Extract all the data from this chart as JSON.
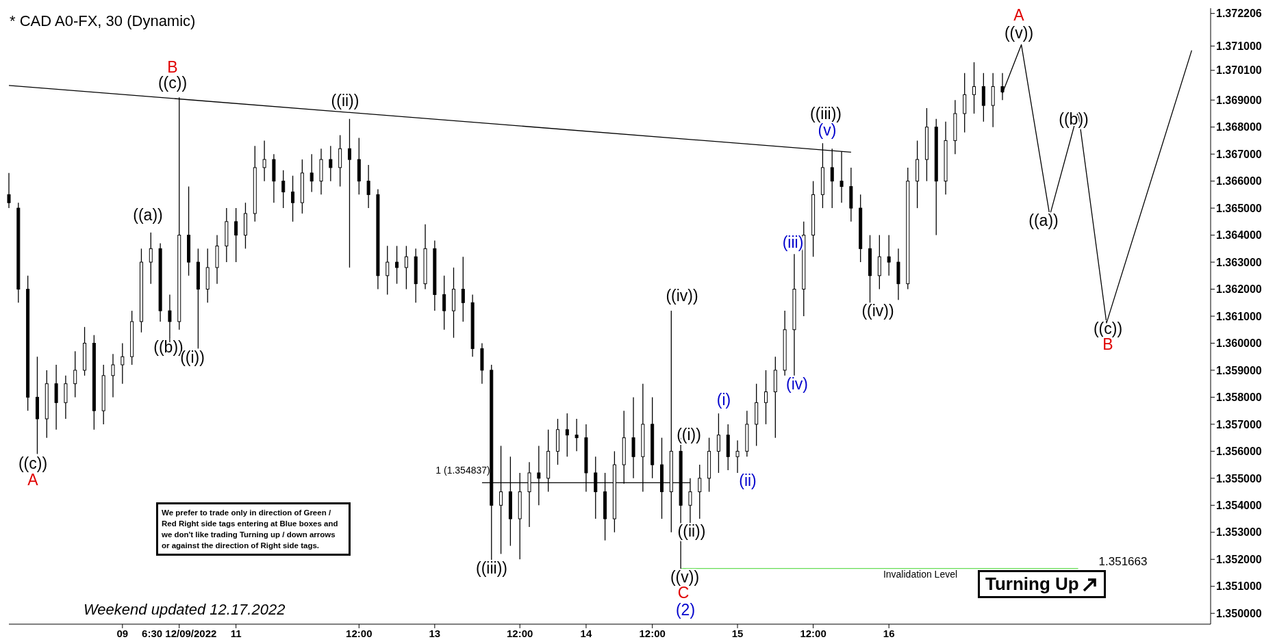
{
  "chart_data": {
    "type": "candlestick",
    "title": "* CAD A0-FX, 30 (Dynamic)",
    "color": "#000000",
    "categories": [
      null,
      null,
      null,
      null,
      null,
      null,
      null,
      null,
      null,
      null,
      null,
      null,
      "09",
      null,
      null,
      null,
      null,
      null,
      "6:30 12/09/2022",
      null,
      null,
      null,
      null,
      null,
      "11",
      null,
      null,
      null,
      null,
      null,
      null,
      null,
      null,
      null,
      null,
      null,
      null,
      "12:00",
      null,
      null,
      null,
      null,
      null,
      null,
      null,
      "13",
      null,
      null,
      null,
      null,
      null,
      null,
      null,
      null,
      "12:00",
      null,
      null,
      null,
      null,
      null,
      null,
      "14",
      null,
      null,
      null,
      null,
      null,
      null,
      "12:00",
      null,
      null,
      null,
      null,
      null,
      null,
      null,
      null,
      "15",
      null,
      null,
      null,
      null,
      null,
      null,
      null,
      "12:00",
      null,
      null,
      null,
      null,
      null,
      null,
      null,
      "16",
      null,
      null,
      null,
      null,
      null,
      null,
      null,
      null,
      null,
      null,
      null,
      null,
      null,
      null,
      null,
      null,
      null,
      null,
      null,
      null,
      null,
      null,
      null,
      null,
      null,
      null,
      null,
      null,
      null,
      null,
      null,
      null,
      null,
      null
    ],
    "ohlc": [
      [
        1.3655,
        1.3663,
        1.365,
        1.3652
      ],
      [
        1.365,
        1.3652,
        1.3615,
        1.362
      ],
      [
        1.362,
        1.3625,
        1.3575,
        1.358
      ],
      [
        1.358,
        1.3595,
        1.3559,
        1.3572
      ],
      [
        1.3572,
        1.359,
        1.3565,
        1.3585
      ],
      [
        1.3585,
        1.3592,
        1.3568,
        1.3578
      ],
      [
        1.3578,
        1.3588,
        1.3572,
        1.3585
      ],
      [
        1.3585,
        1.3597,
        1.358,
        1.359
      ],
      [
        1.359,
        1.3606,
        1.3588,
        1.36
      ],
      [
        1.36,
        1.3603,
        1.3568,
        1.3575
      ],
      [
        1.3575,
        1.3592,
        1.357,
        1.3588
      ],
      [
        1.3588,
        1.3596,
        1.358,
        1.3592
      ],
      [
        1.3592,
        1.36,
        1.3585,
        1.3595
      ],
      [
        1.3595,
        1.3612,
        1.3592,
        1.3608
      ],
      [
        1.3608,
        1.3635,
        1.3604,
        1.363
      ],
      [
        1.363,
        1.3641,
        1.3622,
        1.3635
      ],
      [
        1.3635,
        1.3637,
        1.3608,
        1.3612
      ],
      [
        1.3612,
        1.3618,
        1.36,
        1.3608
      ],
      [
        1.3608,
        1.3691,
        1.3605,
        1.364
      ],
      [
        1.364,
        1.3658,
        1.3625,
        1.363
      ],
      [
        1.363,
        1.3635,
        1.3598,
        1.362
      ],
      [
        1.362,
        1.3635,
        1.3615,
        1.3628
      ],
      [
        1.3628,
        1.364,
        1.3622,
        1.3636
      ],
      [
        1.3636,
        1.365,
        1.363,
        1.3645
      ],
      [
        1.3645,
        1.365,
        1.363,
        1.364
      ],
      [
        1.364,
        1.3652,
        1.3635,
        1.3648
      ],
      [
        1.3648,
        1.3673,
        1.3645,
        1.3665
      ],
      [
        1.3665,
        1.3675,
        1.366,
        1.3668
      ],
      [
        1.3668,
        1.367,
        1.3652,
        1.366
      ],
      [
        1.366,
        1.3664,
        1.365,
        1.3656
      ],
      [
        1.3656,
        1.3662,
        1.3645,
        1.3652
      ],
      [
        1.3652,
        1.3668,
        1.3648,
        1.3663
      ],
      [
        1.3663,
        1.367,
        1.3656,
        1.366
      ],
      [
        1.366,
        1.3672,
        1.3655,
        1.3668
      ],
      [
        1.3668,
        1.3673,
        1.366,
        1.3665
      ],
      [
        1.3665,
        1.3677,
        1.3658,
        1.3672
      ],
      [
        1.3672,
        1.3683,
        1.3628,
        1.3668
      ],
      [
        1.3668,
        1.3676,
        1.3655,
        1.366
      ],
      [
        1.366,
        1.3666,
        1.365,
        1.3655
      ],
      [
        1.3655,
        1.3657,
        1.362,
        1.3625
      ],
      [
        1.3625,
        1.3636,
        1.3618,
        1.363
      ],
      [
        1.363,
        1.3636,
        1.3622,
        1.3628
      ],
      [
        1.3628,
        1.3636,
        1.362,
        1.3632
      ],
      [
        1.3632,
        1.3635,
        1.3615,
        1.3622
      ],
      [
        1.3622,
        1.3644,
        1.362,
        1.3635
      ],
      [
        1.3635,
        1.3638,
        1.3612,
        1.3618
      ],
      [
        1.3618,
        1.3625,
        1.3605,
        1.3612
      ],
      [
        1.3612,
        1.3628,
        1.3602,
        1.362
      ],
      [
        1.362,
        1.3632,
        1.3608,
        1.3615
      ],
      [
        1.3615,
        1.3618,
        1.3595,
        1.3598
      ],
      [
        1.3598,
        1.36,
        1.3585,
        1.359
      ],
      [
        1.359,
        1.3592,
        1.3519,
        1.354
      ],
      [
        1.354,
        1.3562,
        1.3522,
        1.3545
      ],
      [
        1.3545,
        1.3558,
        1.3525,
        1.3535
      ],
      [
        1.3535,
        1.3552,
        1.352,
        1.3545
      ],
      [
        1.3545,
        1.3556,
        1.3532,
        1.3552
      ],
      [
        1.3552,
        1.3562,
        1.354,
        1.355
      ],
      [
        1.355,
        1.3568,
        1.3545,
        1.356
      ],
      [
        1.356,
        1.3572,
        1.3555,
        1.3568
      ],
      [
        1.3568,
        1.3574,
        1.3558,
        1.3566
      ],
      [
        1.3566,
        1.3572,
        1.356,
        1.3565
      ],
      [
        1.3565,
        1.357,
        1.3545,
        1.3552
      ],
      [
        1.3552,
        1.3558,
        1.3535,
        1.3545
      ],
      [
        1.3545,
        1.3552,
        1.3527,
        1.3535
      ],
      [
        1.3535,
        1.356,
        1.353,
        1.3555
      ],
      [
        1.3555,
        1.3575,
        1.3548,
        1.3565
      ],
      [
        1.3565,
        1.358,
        1.355,
        1.3558
      ],
      [
        1.3558,
        1.3585,
        1.3545,
        1.357
      ],
      [
        1.357,
        1.358,
        1.355,
        1.3555
      ],
      [
        1.3555,
        1.3565,
        1.3535,
        1.3545
      ],
      [
        1.3545,
        1.3612,
        1.353,
        1.356
      ],
      [
        1.356,
        1.3565,
        1.3516,
        1.354
      ],
      [
        1.354,
        1.355,
        1.3532,
        1.3545
      ],
      [
        1.3545,
        1.3555,
        1.3535,
        1.355
      ],
      [
        1.355,
        1.3565,
        1.3545,
        1.356
      ],
      [
        1.356,
        1.3574,
        1.3552,
        1.3566
      ],
      [
        1.3566,
        1.357,
        1.3553,
        1.3558
      ],
      [
        1.3558,
        1.3564,
        1.3552,
        1.356
      ],
      [
        1.356,
        1.3575,
        1.3558,
        1.357
      ],
      [
        1.357,
        1.3585,
        1.3562,
        1.3578
      ],
      [
        1.3578,
        1.359,
        1.357,
        1.3582
      ],
      [
        1.3582,
        1.3595,
        1.3565,
        1.359
      ],
      [
        1.359,
        1.3612,
        1.3588,
        1.3605
      ],
      [
        1.3605,
        1.3633,
        1.3588,
        1.362
      ],
      [
        1.362,
        1.3645,
        1.361,
        1.364
      ],
      [
        1.364,
        1.366,
        1.3632,
        1.3655
      ],
      [
        1.3655,
        1.3674,
        1.365,
        1.3665
      ],
      [
        1.3665,
        1.3672,
        1.365,
        1.366
      ],
      [
        1.366,
        1.3671,
        1.3652,
        1.3658
      ],
      [
        1.3658,
        1.3665,
        1.3645,
        1.365
      ],
      [
        1.365,
        1.3655,
        1.363,
        1.3635
      ],
      [
        1.3635,
        1.364,
        1.3614,
        1.3625
      ],
      [
        1.3625,
        1.364,
        1.362,
        1.3632
      ],
      [
        1.3632,
        1.364,
        1.3625,
        1.363
      ],
      [
        1.363,
        1.3635,
        1.3616,
        1.3622
      ],
      [
        1.3622,
        1.3665,
        1.362,
        1.366
      ],
      [
        1.366,
        1.3675,
        1.365,
        1.3668
      ],
      [
        1.3668,
        1.3687,
        1.366,
        1.368
      ],
      [
        1.368,
        1.3683,
        1.364,
        1.366
      ],
      [
        1.366,
        1.3682,
        1.3655,
        1.3675
      ],
      [
        1.3675,
        1.369,
        1.367,
        1.3685
      ],
      [
        1.3685,
        1.37,
        1.3678,
        1.3692
      ],
      [
        1.3692,
        1.3704,
        1.3685,
        1.3695
      ],
      [
        1.3695,
        1.37,
        1.3682,
        1.3688
      ],
      [
        1.3688,
        1.37,
        1.368,
        1.3695
      ],
      [
        1.3695,
        1.37,
        1.369,
        1.3693
      ],
      null,
      null,
      null,
      null,
      null,
      null,
      null,
      null,
      null,
      null,
      null,
      null,
      null,
      null,
      null,
      null,
      null,
      null,
      null,
      null,
      null,
      null
    ],
    "series": [
      {
        "type": "line",
        "color": "#000000",
        "values": [
          1.36954,
          null,
          null,
          null,
          null,
          null,
          null,
          null,
          null,
          null,
          null,
          null,
          null,
          null,
          null,
          null,
          null,
          null,
          null,
          null,
          null,
          null,
          null,
          null,
          null,
          null,
          null,
          null,
          null,
          null,
          null,
          null,
          null,
          null,
          null,
          null,
          null,
          null,
          null,
          null,
          null,
          null,
          null,
          null,
          null,
          null,
          null,
          null,
          null,
          null,
          null,
          null,
          null,
          null,
          null,
          null,
          null,
          null,
          null,
          null,
          null,
          null,
          null,
          null,
          null,
          null,
          null,
          null,
          null,
          null,
          null,
          null,
          null,
          null,
          null,
          null,
          null,
          null,
          null,
          null,
          null,
          null,
          null,
          null,
          null,
          null,
          null,
          null,
          null,
          1.36707,
          null,
          null,
          null,
          null,
          null,
          null,
          null,
          null,
          null,
          null,
          null,
          null,
          null,
          null,
          null,
          null,
          null,
          null,
          null,
          null,
          null,
          null,
          null,
          null,
          null,
          null,
          null,
          null,
          null,
          null,
          null,
          null,
          null,
          null,
          null,
          null,
          null,
          null
        ]
      },
      {
        "type": "line",
        "color": "#000000",
        "values": [
          null,
          null,
          null,
          null,
          null,
          null,
          null,
          null,
          null,
          null,
          null,
          null,
          null,
          null,
          null,
          null,
          null,
          null,
          null,
          null,
          null,
          null,
          null,
          null,
          null,
          null,
          null,
          null,
          null,
          null,
          null,
          null,
          null,
          null,
          null,
          null,
          null,
          null,
          null,
          null,
          null,
          null,
          null,
          null,
          null,
          null,
          null,
          null,
          null,
          null,
          null,
          null,
          null,
          null,
          null,
          null,
          null,
          null,
          null,
          null,
          null,
          null,
          null,
          null,
          null,
          null,
          null,
          null,
          null,
          null,
          null,
          null,
          null,
          null,
          null,
          null,
          null,
          null,
          null,
          null,
          null,
          null,
          null,
          null,
          null,
          null,
          null,
          null,
          null,
          null,
          null,
          null,
          null,
          null,
          null,
          null,
          null,
          null,
          null,
          null,
          null,
          null,
          null,
          null,
          null,
          1.36926,
          null,
          1.37105,
          null,
          null,
          1.36472,
          null,
          null,
          1.36858,
          null,
          null,
          1.36075,
          null,
          null,
          null,
          null,
          null,
          null,
          null,
          null,
          1.37084,
          null,
          null
        ]
      },
      {
        "type": "line",
        "color": "#000000",
        "values": [
          null,
          null,
          null,
          null,
          null,
          null,
          null,
          null,
          null,
          null,
          null,
          null,
          null,
          null,
          null,
          null,
          null,
          null,
          null,
          null,
          null,
          null,
          null,
          null,
          null,
          null,
          null,
          null,
          null,
          null,
          null,
          null,
          null,
          null,
          null,
          null,
          null,
          null,
          null,
          null,
          null,
          null,
          null,
          null,
          null,
          null,
          null,
          null,
          null,
          null,
          1.354837,
          1.354837,
          1.354837,
          1.354837,
          1.354837,
          1.354837,
          1.354837,
          1.354837,
          1.354837,
          1.354837,
          1.354837,
          1.354837,
          1.354837,
          1.354837,
          1.354837,
          1.354837,
          1.354837,
          1.354837,
          1.354837,
          1.354837,
          1.354837,
          1.354837,
          1.354837,
          null,
          null,
          null,
          null,
          null,
          null,
          null,
          null,
          null,
          null,
          null,
          null,
          null,
          null,
          null,
          null,
          null,
          null,
          null,
          null,
          null,
          null,
          null,
          null,
          null,
          null,
          null,
          null,
          null,
          null,
          null,
          null,
          null,
          null,
          null,
          null,
          null,
          null,
          null,
          null,
          null,
          null,
          null,
          null,
          null,
          null,
          null,
          null,
          null,
          null,
          null,
          null,
          null,
          null,
          null
        ]
      },
      {
        "type": "line",
        "color": "#66dd55",
        "values": [
          null,
          null,
          null,
          null,
          null,
          null,
          null,
          null,
          null,
          null,
          null,
          null,
          null,
          null,
          null,
          null,
          null,
          null,
          null,
          null,
          null,
          null,
          null,
          null,
          null,
          null,
          null,
          null,
          null,
          null,
          null,
          null,
          null,
          null,
          null,
          null,
          null,
          null,
          null,
          null,
          null,
          null,
          null,
          null,
          null,
          null,
          null,
          null,
          null,
          null,
          null,
          null,
          null,
          null,
          null,
          null,
          null,
          null,
          null,
          null,
          null,
          null,
          null,
          null,
          null,
          null,
          null,
          null,
          null,
          null,
          null,
          1.351663,
          1.351663,
          1.351663,
          1.351663,
          1.351663,
          1.351663,
          1.351663,
          1.351663,
          1.351663,
          1.351663,
          1.351663,
          1.351663,
          1.351663,
          1.351663,
          1.351663,
          1.351663,
          1.351663,
          1.351663,
          1.351663,
          1.351663,
          1.351663,
          1.351663,
          1.351663,
          1.351663,
          1.351663,
          1.351663,
          1.351663,
          1.351663,
          1.351663,
          1.351663,
          1.351663,
          1.351663,
          1.351663,
          1.351663,
          1.351663,
          1.351663,
          1.351663,
          1.351663,
          1.351663,
          1.351663,
          1.351663,
          1.351663,
          1.351663,
          null,
          null,
          null,
          null,
          null,
          null,
          null,
          null,
          null,
          null,
          null,
          null,
          null,
          null
        ]
      }
    ],
    "marker": "none",
    "ylim": [
      1.3496,
      1.3724
    ],
    "yticks": [
      {
        "value": 1.35,
        "label": "1.350000"
      },
      {
        "value": 1.351,
        "label": "1.351000"
      },
      {
        "value": 1.352,
        "label": "1.352000"
      },
      {
        "value": 1.353,
        "label": "1.353000"
      },
      {
        "value": 1.354,
        "label": "1.354000"
      },
      {
        "value": 1.355,
        "label": "1.355000"
      },
      {
        "value": 1.356,
        "label": "1.356000"
      },
      {
        "value": 1.357,
        "label": "1.357000"
      },
      {
        "value": 1.358,
        "label": "1.358000"
      },
      {
        "value": 1.359,
        "label": "1.359000"
      },
      {
        "value": 1.36,
        "label": "1.360000"
      },
      {
        "value": 1.361,
        "label": "1.361000"
      },
      {
        "value": 1.362,
        "label": "1.362000"
      },
      {
        "value": 1.363,
        "label": "1.363000"
      },
      {
        "value": 1.364,
        "label": "1.364000"
      },
      {
        "value": 1.365,
        "label": "1.365000"
      },
      {
        "value": 1.366,
        "label": "1.366000"
      },
      {
        "value": 1.367,
        "label": "1.367000"
      },
      {
        "value": 1.368,
        "label": "1.368000"
      },
      {
        "value": 1.369,
        "label": "1.369000"
      },
      {
        "value": 1.3701,
        "label": "1.370100"
      },
      {
        "value": 1.371,
        "label": "1.371000"
      },
      {
        "value": 1.372206,
        "label": "1.372206"
      }
    ],
    "annotations": [
      "We prefer to trade only in direction of Green / Red Right side tags entering at Blue boxes and we don't like trading Turning up / down arrows or against the direction of Right side tags.",
      "Weekend updated 12.17.2022",
      "Turning Up",
      "((c))",
      "A",
      "((a))",
      "((b))",
      "B",
      "((c))",
      "((i))",
      "((ii))",
      "((iii))",
      "((iv))",
      "((i))",
      "((ii))",
      "((v))",
      "C",
      "(2)",
      "(i)",
      "(ii)",
      "(iii)",
      "(iv)",
      "((iii))",
      "(v)",
      "((iv))",
      "A",
      "((v))",
      "((a))",
      "((b))",
      "((c))",
      "B",
      "1 (1.354837)",
      "1.351663",
      "Invalidation Level"
    ]
  }
}
